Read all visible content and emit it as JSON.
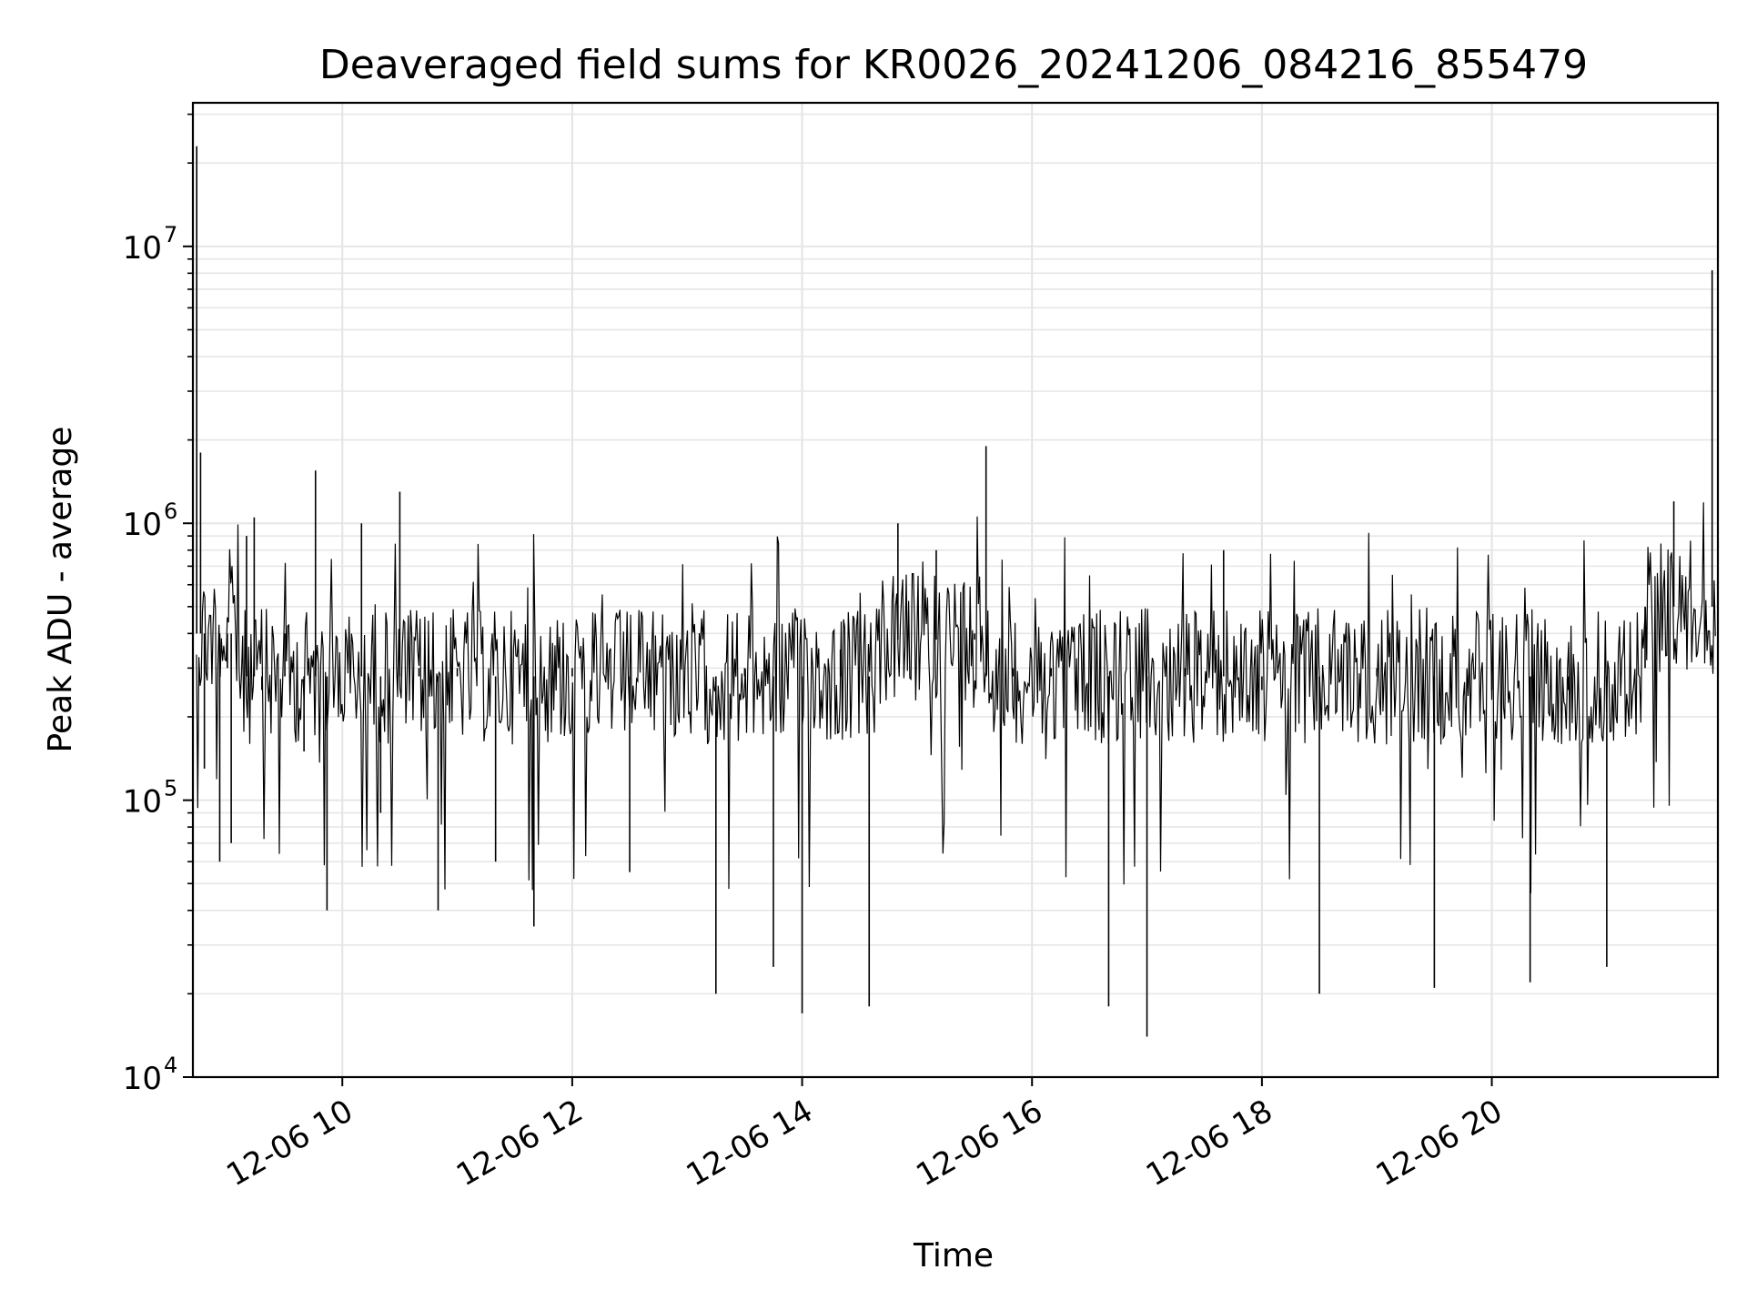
{
  "chart_data": {
    "type": "line",
    "title": "Deaveraged field sums for KR0026_20241206_084216_855479",
    "xlabel": "Time",
    "ylabel": "Peak ADU - average",
    "yscale": "log",
    "ylim": [
      10000,
      33000000
    ],
    "xlim": [
      "2024-12-06 08:42",
      "2024-12-06 21:58"
    ],
    "grid": true,
    "x_ticks": [
      {
        "label": "12-06 10",
        "t": "2024-12-06 10:00"
      },
      {
        "label": "12-06 12",
        "t": "2024-12-06 12:00"
      },
      {
        "label": "12-06 14",
        "t": "2024-12-06 14:00"
      },
      {
        "label": "12-06 16",
        "t": "2024-12-06 16:00"
      },
      {
        "label": "12-06 18",
        "t": "2024-12-06 18:00"
      },
      {
        "label": "12-06 20",
        "t": "2024-12-06 20:00"
      }
    ],
    "y_ticks": [
      {
        "base": "10",
        "exp": "4",
        "value": 10000
      },
      {
        "base": "10",
        "exp": "5",
        "value": 100000
      },
      {
        "base": "10",
        "exp": "6",
        "value": 1000000
      },
      {
        "base": "10",
        "exp": "7",
        "value": 10000000
      }
    ],
    "series": [
      {
        "color": "#000000",
        "data": [
          [
            "2024-12-06 08:42",
            300000
          ],
          [
            "2024-12-06 08:44",
            23000000
          ],
          [
            "2024-12-06 08:46",
            1800000
          ],
          [
            "2024-12-06 08:48",
            130000
          ],
          [
            "2024-12-06 08:52",
            400000
          ],
          [
            "2024-12-06 08:56",
            60000
          ],
          [
            "2024-12-06 09:00",
            300000
          ],
          [
            "2024-12-06 09:02",
            70000
          ],
          [
            "2024-12-06 09:10",
            900000
          ],
          [
            "2024-12-06 09:14",
            1050000
          ],
          [
            "2024-12-06 09:18",
            250000
          ],
          [
            "2024-12-06 09:30",
            400000
          ],
          [
            "2024-12-06 09:40",
            150000
          ],
          [
            "2024-12-06 09:46",
            1550000
          ],
          [
            "2024-12-06 09:52",
            40000
          ],
          [
            "2024-12-06 10:00",
            280000
          ],
          [
            "2024-12-06 10:10",
            1000000
          ],
          [
            "2024-12-06 10:20",
            90000
          ],
          [
            "2024-12-06 10:30",
            1300000
          ],
          [
            "2024-12-06 10:40",
            300000
          ],
          [
            "2024-12-06 10:50",
            40000
          ],
          [
            "2024-12-06 11:00",
            300000
          ],
          [
            "2024-12-06 11:20",
            60000
          ],
          [
            "2024-12-06 11:40",
            35000
          ],
          [
            "2024-12-06 12:00",
            300000
          ],
          [
            "2024-12-06 12:30",
            55000
          ],
          [
            "2024-12-06 13:00",
            280000
          ],
          [
            "2024-12-06 13:15",
            20000
          ],
          [
            "2024-12-06 13:30",
            300000
          ],
          [
            "2024-12-06 13:45",
            25000
          ],
          [
            "2024-12-06 14:00",
            17000
          ],
          [
            "2024-12-06 14:20",
            350000
          ],
          [
            "2024-12-06 14:35",
            18000
          ],
          [
            "2024-12-06 14:50",
            1000000
          ],
          [
            "2024-12-06 15:10",
            800000
          ],
          [
            "2024-12-06 15:30",
            400000
          ],
          [
            "2024-12-06 15:36",
            1900000
          ],
          [
            "2024-12-06 15:50",
            300000
          ],
          [
            "2024-12-06 16:10",
            300000
          ],
          [
            "2024-12-06 16:40",
            18000
          ],
          [
            "2024-12-06 17:00",
            14000
          ],
          [
            "2024-12-06 17:20",
            300000
          ],
          [
            "2024-12-06 17:40",
            800000
          ],
          [
            "2024-12-06 18:00",
            250000
          ],
          [
            "2024-12-06 18:30",
            20000
          ],
          [
            "2024-12-06 19:00",
            300000
          ],
          [
            "2024-12-06 19:30",
            21000
          ],
          [
            "2024-12-06 20:00",
            250000
          ],
          [
            "2024-12-06 20:20",
            22000
          ],
          [
            "2024-12-06 20:40",
            250000
          ],
          [
            "2024-12-06 21:00",
            25000
          ],
          [
            "2024-12-06 21:20",
            300000
          ],
          [
            "2024-12-06 21:35",
            1200000
          ],
          [
            "2024-12-06 21:50",
            500000
          ],
          [
            "2024-12-06 21:55",
            8200000
          ],
          [
            "2024-12-06 21:58",
            550000
          ]
        ]
      }
    ]
  }
}
